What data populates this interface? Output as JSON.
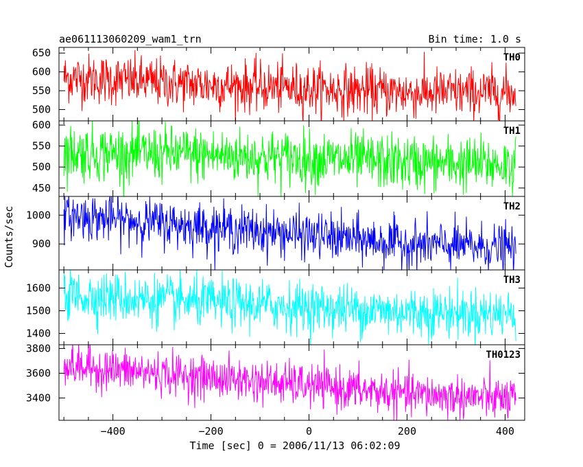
{
  "header": {
    "title": "ae061113060209_wam1_trn",
    "bin_time": "Bin time: 1.0 s"
  },
  "chart_data": {
    "type": "line",
    "xlabel": "Time [sec] 0 = 2006/11/13 06:02:09",
    "ylabel": "Counts/sec",
    "xlim": [
      -510,
      440
    ],
    "x_ticks": [
      -400,
      -200,
      0,
      200,
      400
    ],
    "x_tick_labels": [
      "−400",
      "−200",
      "0",
      "200",
      "400"
    ],
    "x_range": [
      -500,
      422
    ],
    "bin_time_s": 1.0,
    "grid": false,
    "panels": [
      {
        "name": "TH0",
        "color": "#ff0000",
        "ylim": [
          470,
          665
        ],
        "y_ticks": [
          500,
          550,
          600,
          650
        ],
        "trend": [
          [
            -500,
            585
          ],
          [
            -250,
            568
          ],
          [
            0,
            555
          ],
          [
            200,
            545
          ],
          [
            422,
            545
          ]
        ],
        "noise": 33
      },
      {
        "name": "TH1",
        "color": "#00ff00",
        "ylim": [
          430,
          610
        ],
        "y_ticks": [
          450,
          500,
          550,
          600
        ],
        "trend": [
          [
            -500,
            535
          ],
          [
            -250,
            530
          ],
          [
            0,
            520
          ],
          [
            200,
            510
          ],
          [
            422,
            505
          ]
        ],
        "noise": 33
      },
      {
        "name": "TH2",
        "color": "#0000ff",
        "ylim": [
          810,
          1065
        ],
        "y_ticks": [
          900,
          1000
        ],
        "trend": [
          [
            -500,
            1000
          ],
          [
            -250,
            965
          ],
          [
            0,
            930
          ],
          [
            200,
            900
          ],
          [
            422,
            885
          ]
        ],
        "noise": 40
      },
      {
        "name": "TH3",
        "color": "#00ffff",
        "ylim": [
          1350,
          1680
        ],
        "y_ticks": [
          1400,
          1500,
          1600
        ],
        "trend": [
          [
            -500,
            1570
          ],
          [
            -250,
            1540
          ],
          [
            0,
            1515
          ],
          [
            200,
            1495
          ],
          [
            422,
            1485
          ]
        ],
        "noise": 55
      },
      {
        "name": "TH0123",
        "color": "#ff00ff",
        "ylim": [
          3220,
          3830
        ],
        "y_ticks": [
          3400,
          3600,
          3800
        ],
        "trend": [
          [
            -500,
            3660
          ],
          [
            -250,
            3580
          ],
          [
            0,
            3500
          ],
          [
            200,
            3430
          ],
          [
            422,
            3390
          ]
        ],
        "noise": 85
      }
    ]
  }
}
